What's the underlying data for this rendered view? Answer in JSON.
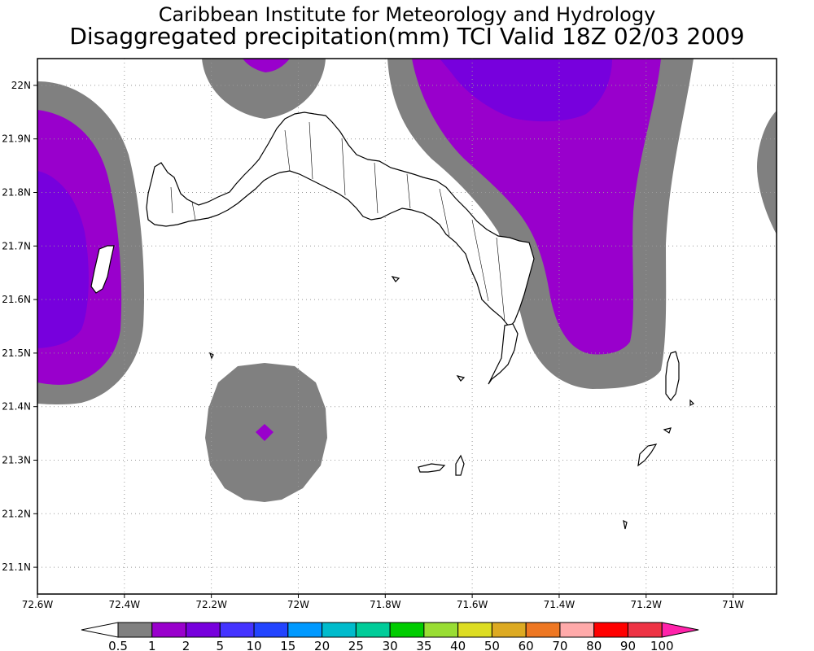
{
  "header": {
    "title_line1": "Caribbean Institute for Meteorology and Hydrology",
    "title_line2": "Disaggregated precipitation(mm) TCI Valid 18Z 02/03 2009"
  },
  "map": {
    "lon_range": [
      -72.6,
      -70.9
    ],
    "lat_range": [
      21.05,
      22.05
    ],
    "lon_ticks": [
      {
        "value": -72.6,
        "label": "72.6W"
      },
      {
        "value": -72.4,
        "label": "72.4W"
      },
      {
        "value": -72.2,
        "label": "72.2W"
      },
      {
        "value": -72.0,
        "label": "72W"
      },
      {
        "value": -71.8,
        "label": "71.8W"
      },
      {
        "value": -71.6,
        "label": "71.6W"
      },
      {
        "value": -71.4,
        "label": "71.4W"
      },
      {
        "value": -71.2,
        "label": "71.2W"
      },
      {
        "value": -71.0,
        "label": "71W"
      }
    ],
    "lat_ticks": [
      {
        "value": 22.0,
        "label": "22N"
      },
      {
        "value": 21.9,
        "label": "21.9N"
      },
      {
        "value": 21.8,
        "label": "21.8N"
      },
      {
        "value": 21.7,
        "label": "21.7N"
      },
      {
        "value": 21.6,
        "label": "21.6N"
      },
      {
        "value": 21.5,
        "label": "21.5N"
      },
      {
        "value": 21.4,
        "label": "21.4N"
      },
      {
        "value": 21.3,
        "label": "21.3N"
      },
      {
        "value": 21.2,
        "label": "21.2N"
      },
      {
        "value": 21.1,
        "label": "21.1N"
      }
    ],
    "grid": true,
    "colors": {
      "gray": "#808080",
      "magenta": "#9900cc",
      "violet": "#7700dd"
    }
  },
  "colorbar": {
    "labels": [
      "0.5",
      "1",
      "2",
      "5",
      "10",
      "15",
      "20",
      "25",
      "30",
      "35",
      "40",
      "50",
      "60",
      "70",
      "80",
      "90",
      "100"
    ],
    "colors": [
      "#808080",
      "#9900cc",
      "#7700dd",
      "#4433ff",
      "#2244ff",
      "#0099ff",
      "#00bbcc",
      "#00cc99",
      "#00cc00",
      "#99dd33",
      "#dddd22",
      "#ddaa22",
      "#ee7722",
      "#ffaaaa",
      "#ff0000",
      "#ee3344",
      "#ff22aa"
    ]
  }
}
